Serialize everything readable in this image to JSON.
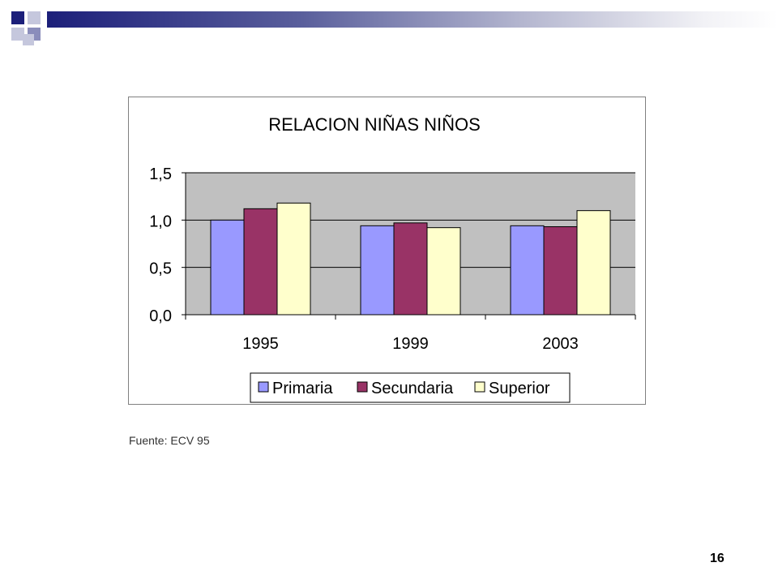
{
  "slide": {
    "source_note": "Fuente: ECV 95",
    "page_number": "16",
    "header_colors": [
      "#1c1f7a",
      "#8a8dbb",
      "#c5c7dd"
    ]
  },
  "chart_data": {
    "type": "bar",
    "title": "RELACION NIÑAS NIÑOS",
    "categories": [
      "1995",
      "1999",
      "2003"
    ],
    "series": [
      {
        "name": "Primaria",
        "values": [
          1.0,
          0.94,
          0.94
        ],
        "color": "#9999ff"
      },
      {
        "name": "Secundaria",
        "values": [
          1.12,
          0.97,
          0.93
        ],
        "color": "#993366"
      },
      {
        "name": "Superior",
        "values": [
          1.18,
          0.92,
          1.1
        ],
        "color": "#ffffcc"
      }
    ],
    "ylim": [
      0,
      1.5
    ],
    "yticks": [
      "0,0",
      "0,5",
      "1,0",
      "1,5"
    ],
    "ytick_values": [
      0,
      0.5,
      1.0,
      1.5
    ],
    "grid": true,
    "plot_background": "#c0c0c0",
    "legend_position": "bottom"
  }
}
